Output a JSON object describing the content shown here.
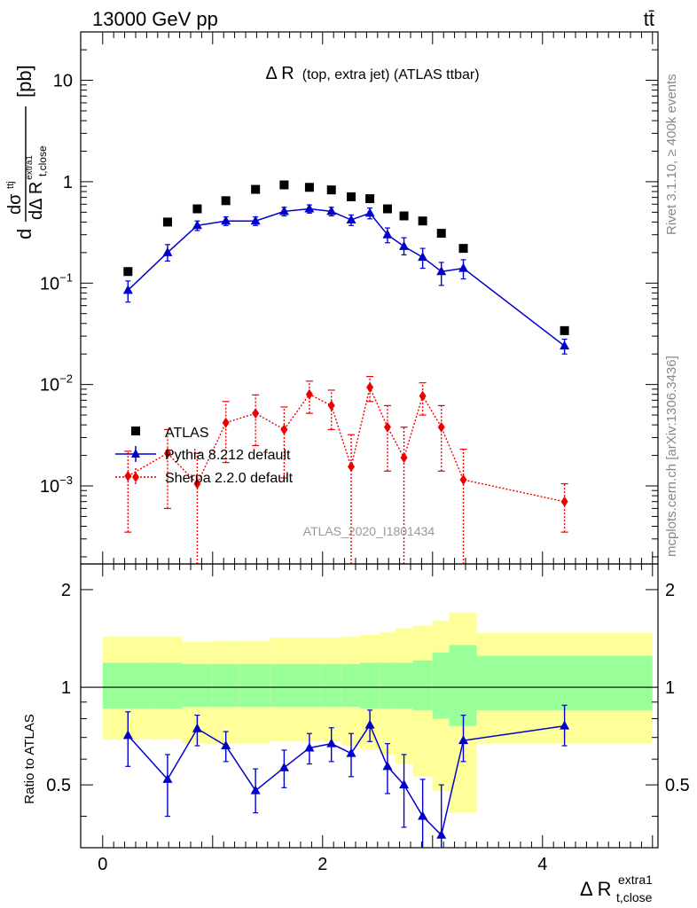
{
  "header": {
    "left": "13000 GeV pp",
    "right": "tt̄"
  },
  "side_labels": {
    "rivet": "Rivet 3.1.10, ≥ 400k events",
    "mcplots": "mcplots.cern.ch [arXiv:1306.3436]"
  },
  "main_plot": {
    "title_big": "Δ R",
    "title_small": "(top, extra jet) (ATLAS ttbar)",
    "ylabel": {
      "d1": "d",
      "dsigma": "dσ",
      "sigma_sup": "ttj",
      "dDR": "dΔ R",
      "dr_sub": "t,close",
      "dr_sup": "extra1",
      "unit": "[pb]"
    },
    "yticks": [
      {
        "label": "10",
        "exp": "",
        "value": 10
      },
      {
        "label": "1",
        "exp": "",
        "value": 1
      },
      {
        "label": "10",
        "exp": "−1",
        "value": 0.1
      },
      {
        "label": "10",
        "exp": "−2",
        "value": 0.01
      },
      {
        "label": "10",
        "exp": "−3",
        "value": 0.001
      }
    ],
    "watermark": "ATLAS_2020_I1801434",
    "legend": [
      "ATLAS",
      "Pythia 8.212 default",
      "Sherpa 2.2.0 default"
    ]
  },
  "ratio_plot": {
    "ylabel": "Ratio to ATLAS",
    "yticks": [
      "0.5",
      "1",
      "2"
    ]
  },
  "xaxis": {
    "ticks": [
      "0",
      "2",
      "4"
    ],
    "label": "Δ R",
    "label_sub": "t,close",
    "label_sup": "extra1"
  },
  "colors": {
    "data": "#000000",
    "pythia": "#0000cc",
    "sherpa": "#ee0000",
    "band_inner": "#99ff99",
    "band_outer": "#ffff99"
  },
  "chart_data": {
    "type": "scatter",
    "x_range": [
      -0.2,
      5.05
    ],
    "y_range_main": [
      0.00017,
      30
    ],
    "y_range_ratio": [
      0.32,
      2.4
    ],
    "y_scale": "log",
    "bins": [
      0.0,
      0.45,
      0.72,
      1.0,
      1.25,
      1.52,
      1.78,
      1.98,
      2.17,
      2.34,
      2.52,
      2.66,
      2.82,
      3.0,
      3.15,
      3.4,
      5.0
    ],
    "series": [
      {
        "name": "ATLAS",
        "x": [
          0.23,
          0.59,
          0.86,
          1.12,
          1.39,
          1.65,
          1.88,
          2.08,
          2.26,
          2.43,
          2.59,
          2.74,
          2.91,
          3.08,
          3.28,
          4.2
        ],
        "y": [
          0.13,
          0.4,
          0.54,
          0.65,
          0.84,
          0.93,
          0.88,
          0.83,
          0.71,
          0.68,
          0.54,
          0.46,
          0.41,
          0.31,
          0.22,
          0.034
        ]
      },
      {
        "name": "Pythia 8.212 default",
        "x": [
          0.23,
          0.59,
          0.86,
          1.12,
          1.39,
          1.65,
          1.88,
          2.08,
          2.26,
          2.43,
          2.59,
          2.74,
          2.91,
          3.08,
          3.28,
          4.2
        ],
        "y": [
          0.085,
          0.2,
          0.37,
          0.41,
          0.41,
          0.51,
          0.54,
          0.51,
          0.42,
          0.49,
          0.3,
          0.23,
          0.18,
          0.13,
          0.14,
          0.024
        ],
        "err_lo": [
          0.065,
          0.165,
          0.33,
          0.37,
          0.37,
          0.46,
          0.49,
          0.46,
          0.37,
          0.43,
          0.25,
          0.19,
          0.14,
          0.095,
          0.11,
          0.02
        ],
        "err_hi": [
          0.105,
          0.24,
          0.41,
          0.45,
          0.45,
          0.56,
          0.59,
          0.56,
          0.47,
          0.55,
          0.35,
          0.28,
          0.22,
          0.16,
          0.17,
          0.028
        ]
      },
      {
        "name": "Sherpa 2.2.0 default",
        "x": [
          0.23,
          0.59,
          0.86,
          1.12,
          1.39,
          1.65,
          1.88,
          2.08,
          2.26,
          2.43,
          2.59,
          2.74,
          2.91,
          3.08,
          3.28,
          4.2
        ],
        "y": [
          0.00125,
          0.0021,
          0.00105,
          0.0042,
          0.0052,
          0.0036,
          0.008,
          0.0062,
          0.00155,
          0.0094,
          0.0038,
          0.0019,
          0.0077,
          0.0038,
          0.00115,
          0.0007
        ],
        "err_lo": [
          0.00035,
          0.0006,
          0.0001,
          0.0017,
          0.0025,
          0.0012,
          0.0052,
          0.0036,
          0.0001,
          0.0068,
          0.0014,
          0.0001,
          0.005,
          0.0014,
          0.0001,
          0.00035
        ],
        "err_hi": [
          0.0022,
          0.0036,
          0.0021,
          0.0068,
          0.0079,
          0.006,
          0.0108,
          0.0088,
          0.0032,
          0.012,
          0.0062,
          0.0038,
          0.0104,
          0.0062,
          0.0023,
          0.00105
        ]
      }
    ],
    "ratio": {
      "x": [
        0.23,
        0.59,
        0.86,
        1.12,
        1.39,
        1.65,
        1.88,
        2.08,
        2.26,
        2.43,
        2.59,
        2.74,
        2.91,
        3.08,
        3.28,
        4.2
      ],
      "y": [
        0.71,
        0.52,
        0.745,
        0.66,
        0.48,
        0.565,
        0.65,
        0.67,
        0.625,
        0.765,
        0.57,
        0.5,
        0.4,
        0.35,
        0.685,
        0.76
      ],
      "err_lo": [
        0.57,
        0.4,
        0.66,
        0.59,
        0.41,
        0.49,
        0.58,
        0.59,
        0.53,
        0.68,
        0.47,
        0.37,
        0.28,
        0.2,
        0.59,
        0.66
      ],
      "err_hi": [
        0.84,
        0.62,
        0.82,
        0.73,
        0.56,
        0.64,
        0.72,
        0.75,
        0.72,
        0.85,
        0.67,
        0.62,
        0.52,
        0.5,
        0.82,
        0.88
      ],
      "band_inner_lo": [
        0.86,
        0.86,
        0.87,
        0.87,
        0.87,
        0.87,
        0.87,
        0.87,
        0.87,
        0.86,
        0.86,
        0.86,
        0.85,
        0.8,
        0.76,
        0.85
      ],
      "band_inner_hi": [
        1.19,
        1.19,
        1.18,
        1.18,
        1.18,
        1.18,
        1.18,
        1.18,
        1.18,
        1.19,
        1.19,
        1.19,
        1.21,
        1.28,
        1.35,
        1.25
      ],
      "band_outer_lo": [
        0.69,
        0.69,
        0.67,
        0.67,
        0.67,
        0.68,
        0.68,
        0.68,
        0.66,
        0.64,
        0.62,
        0.58,
        0.53,
        0.48,
        0.41,
        0.67
      ],
      "band_outer_hi": [
        1.43,
        1.43,
        1.38,
        1.39,
        1.39,
        1.42,
        1.42,
        1.42,
        1.43,
        1.45,
        1.48,
        1.52,
        1.55,
        1.6,
        1.7,
        1.47
      ]
    }
  }
}
